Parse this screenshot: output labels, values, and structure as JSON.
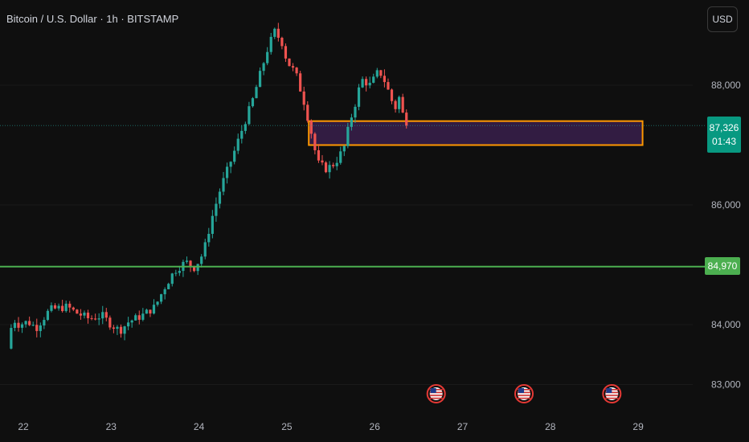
{
  "header": {
    "title": "Bitcoin / U.S. Dollar · 1h · BITSTAMP",
    "currency_button": "USD"
  },
  "price_tag": {
    "price": "87,326",
    "countdown": "01:43"
  },
  "level_tag": {
    "value": "84,970"
  },
  "colors": {
    "background": "#0f0f0f",
    "up": "#26a69a",
    "down": "#ef5350",
    "support_line": "#4caf50",
    "zone_border": "#ff9800",
    "zone_fill": "#3b1f4f",
    "current_price": "#089981"
  },
  "chart_data": {
    "type": "candlestick",
    "symbol": "Bitcoin / U.S. Dollar",
    "interval": "1h",
    "exchange": "BITSTAMP",
    "x_ticks": [
      "22",
      "23",
      "24",
      "25",
      "26",
      "27",
      "28",
      "29"
    ],
    "y_ticks": [
      "83,000",
      "84,000",
      "86,000",
      "88,000"
    ],
    "ylim": [
      82700,
      89500
    ],
    "current_price": 87326,
    "horizontal_line": {
      "value": 84970,
      "label": "84,970"
    },
    "zone": {
      "low": 87000,
      "high": 87400,
      "from_day": 25.25,
      "to_day": 29.05
    },
    "event_markers": [
      26.7,
      27.7,
      28.7
    ],
    "event_icon": "us-flag-icon",
    "path": [
      [
        21.82,
        83600
      ],
      [
        21.88,
        84100
      ],
      [
        21.95,
        84000
      ],
      [
        22.05,
        84050
      ],
      [
        22.15,
        83950
      ],
      [
        22.3,
        84250
      ],
      [
        22.5,
        84300
      ],
      [
        22.6,
        84200
      ],
      [
        22.75,
        84100
      ],
      [
        22.9,
        84150
      ],
      [
        23.0,
        84000
      ],
      [
        23.1,
        83900
      ],
      [
        23.2,
        84050
      ],
      [
        23.35,
        84150
      ],
      [
        23.5,
        84300
      ],
      [
        23.6,
        84600
      ],
      [
        23.72,
        84900
      ],
      [
        23.85,
        85050
      ],
      [
        23.95,
        84950
      ],
      [
        24.05,
        85200
      ],
      [
        24.15,
        85800
      ],
      [
        24.25,
        86300
      ],
      [
        24.38,
        86800
      ],
      [
        24.5,
        87300
      ],
      [
        24.6,
        87700
      ],
      [
        24.7,
        88200
      ],
      [
        24.78,
        88600
      ],
      [
        24.86,
        88900
      ],
      [
        24.95,
        88700
      ],
      [
        25.0,
        88400
      ],
      [
        25.1,
        88200
      ],
      [
        25.2,
        87700
      ],
      [
        25.28,
        87200
      ],
      [
        25.35,
        86700
      ],
      [
        25.45,
        86600
      ],
      [
        25.55,
        86700
      ],
      [
        25.65,
        86950
      ],
      [
        25.72,
        87400
      ],
      [
        25.78,
        87700
      ],
      [
        25.85,
        88100
      ],
      [
        25.95,
        88000
      ],
      [
        26.05,
        88250
      ],
      [
        26.12,
        88050
      ],
      [
        26.18,
        87800
      ],
      [
        26.23,
        87600
      ],
      [
        26.28,
        87800
      ],
      [
        26.33,
        87450
      ],
      [
        26.38,
        87326
      ]
    ]
  }
}
